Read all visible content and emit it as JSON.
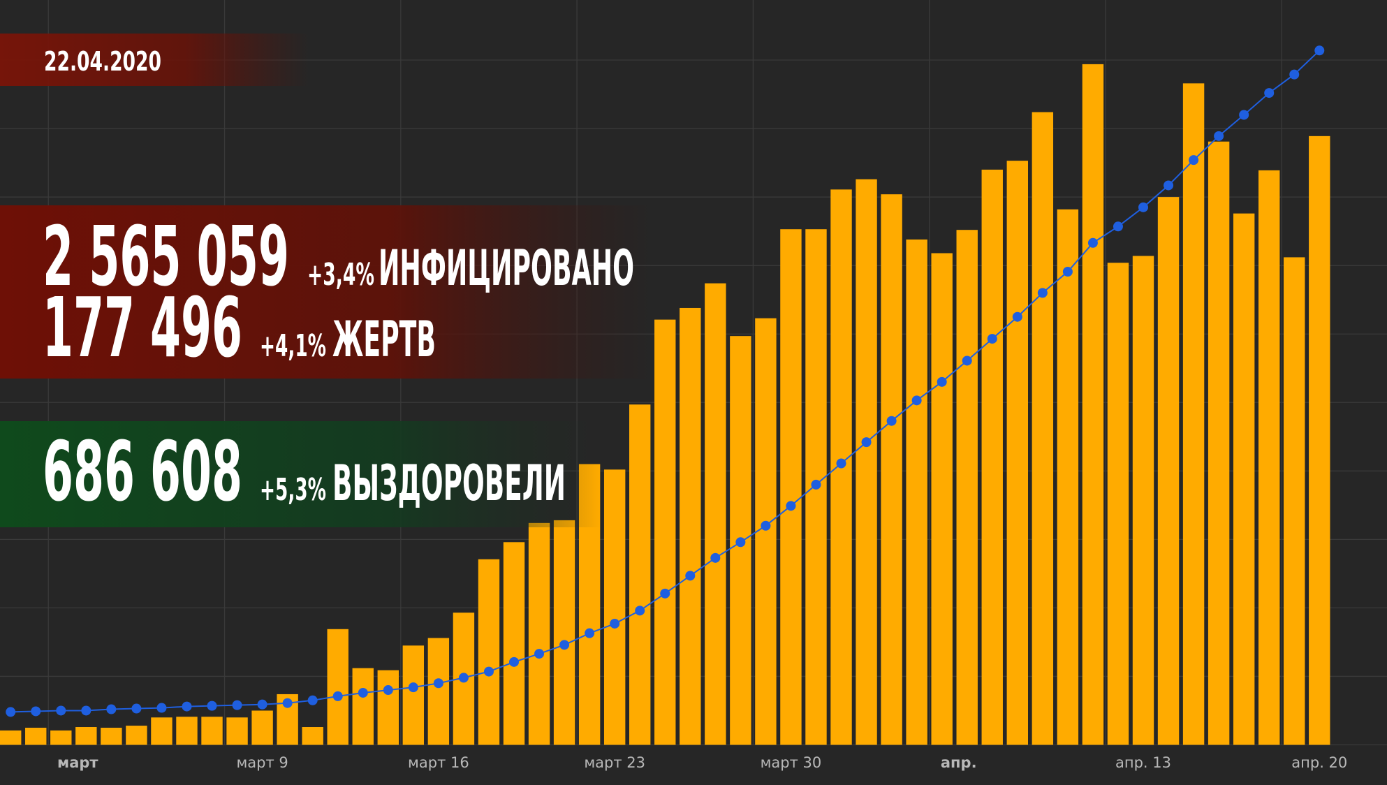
{
  "chart_data": {
    "type": "bar",
    "date": "22.04.2020",
    "stats": [
      {
        "value": "2 565 059",
        "change": "+3,4%",
        "label": "ИНФИЦИРОВАНО"
      },
      {
        "value": "177 496",
        "change": "+4,1%",
        "label": "ЖЕРТВ"
      },
      {
        "value": "686 608",
        "change": "+5,3%",
        "label": "ВЫЗДОРОВЕЛИ"
      }
    ],
    "categories": [
      null,
      null,
      null,
      "март",
      null,
      null,
      null,
      null,
      null,
      null,
      "март 9",
      null,
      null,
      null,
      null,
      null,
      null,
      "март 16",
      null,
      null,
      null,
      null,
      null,
      null,
      "март 23",
      null,
      null,
      null,
      null,
      null,
      null,
      "март 30",
      null,
      null,
      null,
      null,
      null,
      null,
      "апр.",
      null,
      null,
      null,
      null,
      null,
      null,
      "апр. 13",
      null,
      null,
      null,
      null,
      null,
      null,
      "апр. 20"
    ],
    "series": [
      {
        "type": "bar",
        "color": "#ffab00",
        "values": [
          2.1,
          2.5,
          2.1,
          2.6,
          2.5,
          2.8,
          4.0,
          4.1,
          4.1,
          4.0,
          5.0,
          7.4,
          2.6,
          16.9,
          11.2,
          10.9,
          14.5,
          15.6,
          19.3,
          27.1,
          29.6,
          32.4,
          32.8,
          41.0,
          40.2,
          49.7,
          62.1,
          63.8,
          67.4,
          59.7,
          62.3,
          75.3,
          75.3,
          81.1,
          82.6,
          80.4,
          73.8,
          71.8,
          75.2,
          84.0,
          85.3,
          92.4,
          78.2,
          99.4,
          70.4,
          71.4,
          80.0,
          96.6,
          88.1,
          77.6,
          83.9,
          71.2,
          88.9
        ]
      },
      {
        "type": "line",
        "color": "#1f5fe0",
        "values": [
          4.8,
          4.9,
          5.0,
          5.0,
          5.2,
          5.3,
          5.4,
          5.6,
          5.7,
          5.8,
          5.9,
          6.1,
          6.5,
          7.1,
          7.6,
          8.0,
          8.4,
          9.0,
          9.8,
          10.7,
          12.1,
          13.3,
          14.6,
          16.3,
          17.7,
          19.6,
          22.1,
          24.7,
          27.3,
          29.6,
          32.0,
          34.9,
          38.0,
          41.1,
          44.2,
          47.3,
          50.3,
          53.0,
          56.1,
          59.3,
          62.5,
          66.0,
          69.1,
          73.3,
          75.7,
          78.5,
          81.7,
          85.4,
          88.9,
          92.0,
          95.2,
          97.9,
          101.4
        ]
      }
    ],
    "ylim": [
      0,
      105
    ],
    "yticks": [
      0,
      10,
      20,
      30,
      40,
      50,
      60,
      70,
      80,
      90,
      100
    ],
    "grid": true
  }
}
